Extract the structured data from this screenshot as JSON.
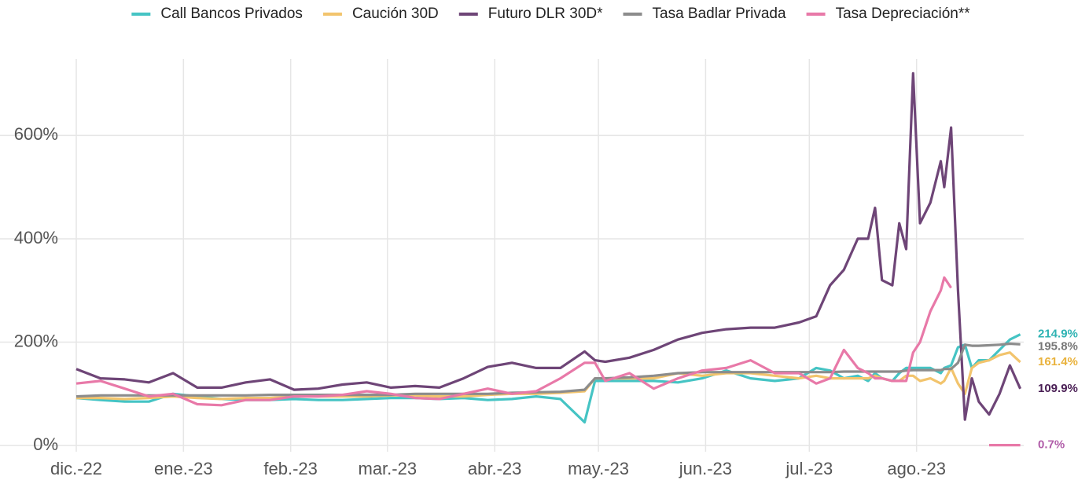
{
  "chart_data": {
    "type": "line",
    "x": [
      0,
      7,
      14,
      21,
      28,
      35,
      42,
      49,
      56,
      63,
      70,
      77,
      84,
      91,
      98,
      105,
      112,
      119,
      126,
      133,
      140,
      147,
      150,
      153,
      160,
      167,
      174,
      181,
      188,
      195,
      202,
      209,
      214,
      218,
      222,
      226,
      229,
      231,
      233,
      236,
      238,
      240,
      242,
      244,
      247,
      250,
      251,
      253,
      255,
      257,
      259,
      261,
      264,
      267,
      270,
      273
    ],
    "xlim": [
      0,
      274
    ],
    "xticks": [
      {
        "value": 0,
        "label": "dic.-22"
      },
      {
        "value": 31,
        "label": "ene.-23"
      },
      {
        "value": 62,
        "label": "feb.-23"
      },
      {
        "value": 90,
        "label": "mar.-23"
      },
      {
        "value": 121,
        "label": "abr.-23"
      },
      {
        "value": 151,
        "label": "may.-23"
      },
      {
        "value": 182,
        "label": "jun.-23"
      },
      {
        "value": 212,
        "label": "jul.-23"
      },
      {
        "value": 243,
        "label": "ago.-23"
      }
    ],
    "ylim": [
      -12,
      748
    ],
    "yticks": [
      {
        "value": 0,
        "label": "0%"
      },
      {
        "value": 200,
        "label": "200%"
      },
      {
        "value": 400,
        "label": "400%"
      },
      {
        "value": 600,
        "label": "600%"
      }
    ],
    "grid": true,
    "legend": "top",
    "series": [
      {
        "name": "Call Bancos Privados",
        "color": "#45c4c4",
        "label_color": "#2fb3b3",
        "values": [
          92,
          88,
          85,
          85,
          100,
          95,
          90,
          88,
          88,
          90,
          88,
          88,
          90,
          92,
          92,
          90,
          92,
          88,
          90,
          95,
          90,
          45,
          125,
          125,
          125,
          125,
          122,
          130,
          145,
          130,
          125,
          130,
          150,
          145,
          130,
          135,
          125,
          140,
          130,
          125,
          140,
          150,
          150,
          150,
          150,
          140,
          150,
          155,
          190,
          195,
          150,
          165,
          165,
          185,
          205,
          214.9
        ],
        "value_labels": [
          null,
          null,
          null,
          null,
          null,
          null,
          null,
          null,
          null,
          null,
          null,
          null,
          null,
          null,
          null,
          null,
          null,
          null,
          null,
          null,
          null,
          null,
          null,
          null,
          null,
          null,
          null,
          null,
          null,
          null,
          null,
          null,
          null,
          null,
          null,
          null,
          null,
          null,
          null,
          null,
          null,
          null,
          null,
          null,
          null,
          null,
          null,
          null,
          null,
          null,
          null,
          null,
          null,
          null,
          null,
          "214.9%"
        ]
      },
      {
        "name": "Caución 30D",
        "color": "#f2c46d",
        "label_color": "#e9b23c",
        "values": [
          92,
          92,
          90,
          92,
          95,
          92,
          90,
          92,
          92,
          95,
          95,
          95,
          95,
          97,
          97,
          95,
          95,
          98,
          100,
          100,
          102,
          105,
          130,
          130,
          130,
          130,
          140,
          135,
          140,
          140,
          135,
          130,
          135,
          130,
          130,
          130,
          130,
          135,
          130,
          125,
          125,
          135,
          135,
          125,
          130,
          120,
          125,
          150,
          120,
          100,
          150,
          160,
          165,
          175,
          180,
          161.4
        ],
        "value_labels": [
          null,
          null,
          null,
          null,
          null,
          null,
          null,
          null,
          null,
          null,
          null,
          null,
          null,
          null,
          null,
          null,
          null,
          null,
          null,
          null,
          null,
          null,
          null,
          null,
          null,
          null,
          null,
          null,
          null,
          null,
          null,
          null,
          null,
          null,
          null,
          null,
          null,
          null,
          null,
          null,
          null,
          null,
          null,
          null,
          null,
          null,
          null,
          null,
          null,
          null,
          null,
          null,
          null,
          null,
          null,
          "161.4%"
        ]
      },
      {
        "name": "Futuro DLR 30D*",
        "color": "#6e4577",
        "label_color": "#4a1f55",
        "values": [
          148,
          130,
          128,
          122,
          140,
          112,
          112,
          122,
          128,
          108,
          110,
          118,
          122,
          112,
          115,
          112,
          130,
          152,
          160,
          150,
          150,
          182,
          165,
          162,
          170,
          185,
          205,
          218,
          225,
          228,
          228,
          238,
          250,
          310,
          340,
          400,
          400,
          460,
          320,
          310,
          430,
          380,
          720,
          430,
          470,
          550,
          500,
          615,
          300,
          50,
          130,
          85,
          60,
          100,
          155,
          109.9
        ],
        "value_labels": [
          null,
          null,
          null,
          null,
          null,
          null,
          null,
          null,
          null,
          null,
          null,
          null,
          null,
          null,
          null,
          null,
          null,
          null,
          null,
          null,
          null,
          null,
          null,
          null,
          null,
          null,
          null,
          null,
          null,
          null,
          null,
          null,
          null,
          null,
          null,
          null,
          null,
          null,
          null,
          null,
          null,
          null,
          null,
          null,
          null,
          null,
          null,
          null,
          null,
          null,
          null,
          null,
          null,
          null,
          null,
          "109.9%"
        ]
      },
      {
        "name": "Tasa Badlar Privada",
        "color": "#8c8c8c",
        "label_color": "#777777",
        "values": [
          95,
          97,
          97,
          97,
          97,
          97,
          97,
          97,
          98,
          98,
          98,
          98,
          98,
          98,
          100,
          100,
          100,
          100,
          102,
          103,
          104,
          108,
          130,
          130,
          132,
          135,
          140,
          142,
          142,
          142,
          142,
          142,
          142,
          142,
          143,
          143,
          143,
          143,
          143,
          143,
          143,
          145,
          146,
          146,
          146,
          146,
          148,
          148,
          160,
          195,
          193,
          193,
          194,
          195,
          197,
          195.8
        ],
        "value_labels": [
          null,
          null,
          null,
          null,
          null,
          null,
          null,
          null,
          null,
          null,
          null,
          null,
          null,
          null,
          null,
          null,
          null,
          null,
          null,
          null,
          null,
          null,
          null,
          null,
          null,
          null,
          null,
          null,
          null,
          null,
          null,
          null,
          null,
          null,
          null,
          null,
          null,
          null,
          null,
          null,
          null,
          null,
          null,
          null,
          null,
          null,
          null,
          null,
          null,
          null,
          null,
          null,
          null,
          null,
          null,
          "195.8%"
        ]
      },
      {
        "name": "Tasa Depreciación**",
        "color": "#e879a8",
        "label_color": "#b05ca8",
        "values": [
          120,
          125,
          110,
          95,
          100,
          80,
          78,
          88,
          88,
          95,
          95,
          98,
          105,
          100,
          92,
          90,
          100,
          110,
          100,
          105,
          130,
          160,
          160,
          125,
          140,
          110,
          130,
          145,
          150,
          165,
          140,
          140,
          120,
          130,
          185,
          150,
          140,
          130,
          130,
          125,
          125,
          125,
          180,
          200,
          260,
          300,
          325,
          305,
          null,
          null,
          null,
          null,
          0.7,
          0.7,
          0.7,
          0.7
        ],
        "value_labels": [
          null,
          null,
          null,
          null,
          null,
          null,
          null,
          null,
          null,
          null,
          null,
          null,
          null,
          null,
          null,
          null,
          null,
          null,
          null,
          null,
          null,
          null,
          null,
          null,
          null,
          null,
          null,
          null,
          null,
          null,
          null,
          null,
          null,
          null,
          null,
          null,
          null,
          null,
          null,
          null,
          null,
          null,
          null,
          null,
          null,
          null,
          null,
          null,
          null,
          null,
          null,
          null,
          null,
          null,
          null,
          "0.7%"
        ]
      }
    ]
  }
}
